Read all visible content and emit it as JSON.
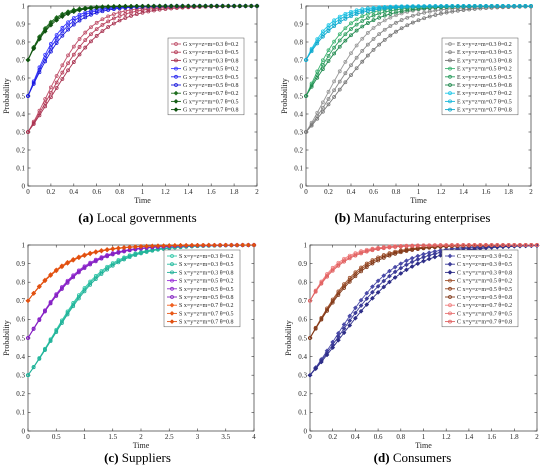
{
  "chart_data": [
    {
      "type": "line",
      "panel": "a",
      "caption_tag": "(a)",
      "caption_text": "Local governments",
      "xlabel": "Time",
      "ylabel": "Probability",
      "xlim": [
        0,
        2
      ],
      "ylim": [
        0,
        1
      ],
      "xticks": [
        "0",
        "0.2",
        "0.4",
        "0.6",
        "0.8",
        "1",
        "1.2",
        "1.4",
        "1.6",
        "1.8",
        "2"
      ],
      "yticks": [
        "0",
        "0.1",
        "0.2",
        "0.3",
        "0.4",
        "0.5",
        "0.6",
        "0.7",
        "0.8",
        "0.9",
        "1"
      ],
      "legend_position": "right-center",
      "series": [
        {
          "name": "G x=y=z=m=0.3 θ=0.2",
          "color": "#c0506a",
          "marker": "circle",
          "x0": 0.3,
          "rate": 5.2
        },
        {
          "name": "G x=y=z=m=0.3 θ=0.5",
          "color": "#b8405c",
          "marker": "circle",
          "x0": 0.3,
          "rate": 4.6
        },
        {
          "name": "G x=y=z=m=0.3 θ=0.8",
          "color": "#a83250",
          "marker": "circle",
          "x0": 0.3,
          "rate": 4.1
        },
        {
          "name": "G x=y=z=m=0.5 θ=0.2",
          "color": "#3a3aff",
          "marker": "circle",
          "x0": 0.5,
          "rate": 6.6
        },
        {
          "name": "G x=y=z=m=0.5 θ=0.5",
          "color": "#2a2aee",
          "marker": "circle",
          "x0": 0.5,
          "rate": 6.0
        },
        {
          "name": "G x=y=z=m=0.5 θ=0.8",
          "color": "#1a1add",
          "marker": "circle",
          "x0": 0.5,
          "rate": 5.4
        },
        {
          "name": "G x=y=z=m=0.7 θ=0.2",
          "color": "#1f6e1f",
          "marker": "diamond",
          "x0": 0.7,
          "rate": 7.4
        },
        {
          "name": "G x=y=z=m=0.7 θ=0.5",
          "color": "#176017",
          "marker": "diamond",
          "x0": 0.7,
          "rate": 6.9
        },
        {
          "name": "G x=y=z=m=0.7 θ=0.8",
          "color": "#0f520f",
          "marker": "diamond",
          "x0": 0.7,
          "rate": 6.4
        }
      ]
    },
    {
      "type": "line",
      "panel": "b",
      "caption_tag": "(b)",
      "caption_text": "Manufacturing enterprises",
      "xlabel": "Time",
      "ylabel": "Probability",
      "xlim": [
        0,
        2
      ],
      "ylim": [
        0,
        1
      ],
      "xticks": [
        "0",
        "0.2",
        "0.4",
        "0.6",
        "0.8",
        "1",
        "1.2",
        "1.4",
        "1.6",
        "1.8",
        "2"
      ],
      "yticks": [
        "0",
        "0.1",
        "0.2",
        "0.3",
        "0.4",
        "0.5",
        "0.6",
        "0.7",
        "0.8",
        "0.9",
        "1"
      ],
      "legend_position": "right-center",
      "series": [
        {
          "name": "E x=y=z=m=0.3 θ=0.2",
          "color": "#999999",
          "marker": "circle",
          "x0": 0.3,
          "rate": 4.7
        },
        {
          "name": "E x=y=z=m=0.3 θ=0.5",
          "color": "#888888",
          "marker": "circle",
          "x0": 0.3,
          "rate": 3.9
        },
        {
          "name": "E x=y=z=m=0.3 θ=0.8",
          "color": "#777777",
          "marker": "circle",
          "x0": 0.3,
          "rate": 3.3
        },
        {
          "name": "E x=y=z=m=0.5 θ=0.2",
          "color": "#3cb371",
          "marker": "circle",
          "x0": 0.5,
          "rate": 5.6
        },
        {
          "name": "E x=y=z=m=0.5 θ=0.5",
          "color": "#2e9e60",
          "marker": "circle",
          "x0": 0.5,
          "rate": 4.8
        },
        {
          "name": "E x=y=z=m=0.5 θ=0.8",
          "color": "#228b50",
          "marker": "circle",
          "x0": 0.5,
          "rate": 4.1
        },
        {
          "name": "E x=y=z=m=0.7 θ=0.2",
          "color": "#22c8e8",
          "marker": "circle",
          "x0": 0.7,
          "rate": 6.4
        },
        {
          "name": "E x=y=z=m=0.7 θ=0.5",
          "color": "#1ab8da",
          "marker": "circle",
          "x0": 0.7,
          "rate": 5.6
        },
        {
          "name": "E x=y=z=m=0.7 θ=0.8",
          "color": "#10a8cc",
          "marker": "circle",
          "x0": 0.7,
          "rate": 4.9
        }
      ]
    },
    {
      "type": "line",
      "panel": "c",
      "caption_tag": "(c)",
      "caption_text": "Suppliers",
      "xlabel": "Time",
      "ylabel": "Probability",
      "xlim": [
        0,
        4
      ],
      "ylim": [
        0,
        1
      ],
      "xticks": [
        "0",
        "0.5",
        "1",
        "1.5",
        "2",
        "2.5",
        "3",
        "3.5",
        "4"
      ],
      "yticks": [
        "0",
        "0.1",
        "0.2",
        "0.3",
        "0.4",
        "0.5",
        "0.6",
        "0.7",
        "0.8",
        "0.9",
        "1"
      ],
      "legend_position": "right-center",
      "series": [
        {
          "name": "S x=y=z=m=0.3 θ=0.2",
          "color": "#30c8a8",
          "marker": "circle",
          "x0": 0.3,
          "rate": 2.05
        },
        {
          "name": "S x=y=z=m=0.3 θ=0.5",
          "color": "#28bca0",
          "marker": "circle",
          "x0": 0.3,
          "rate": 2.0
        },
        {
          "name": "S x=y=z=m=0.3 θ=0.8",
          "color": "#20b098",
          "marker": "circle",
          "x0": 0.3,
          "rate": 1.95
        },
        {
          "name": "S x=y=z=m=0.5 θ=0.2",
          "color": "#9a30d8",
          "marker": "circle",
          "x0": 0.5,
          "rate": 2.05
        },
        {
          "name": "S x=y=z=m=0.5 θ=0.5",
          "color": "#8e28cc",
          "marker": "circle",
          "x0": 0.5,
          "rate": 2.0
        },
        {
          "name": "S x=y=z=m=0.5 θ=0.8",
          "color": "#8220c0",
          "marker": "circle",
          "x0": 0.5,
          "rate": 1.95
        },
        {
          "name": "S x=y=z=m=0.7 θ=0.2",
          "color": "#f06020",
          "marker": "diamond",
          "x0": 0.7,
          "rate": 2.05
        },
        {
          "name": "S x=y=z=m=0.7 θ=0.5",
          "color": "#e85818",
          "marker": "diamond",
          "x0": 0.7,
          "rate": 2.0
        },
        {
          "name": "S x=y=z=m=0.7 θ=0.8",
          "color": "#e05010",
          "marker": "diamond",
          "x0": 0.7,
          "rate": 1.95
        }
      ]
    },
    {
      "type": "line",
      "panel": "d",
      "caption_tag": "(d)",
      "caption_text": "Consumers",
      "xlabel": "Time",
      "ylabel": "Probability",
      "xlim": [
        0,
        2
      ],
      "ylim": [
        0,
        1
      ],
      "xticks": [
        "0",
        "0.2",
        "0.4",
        "0.6",
        "0.8",
        "1",
        "1.2",
        "1.4",
        "1.6",
        "1.8",
        "2"
      ],
      "yticks": [
        "0",
        "0.1",
        "0.2",
        "0.3",
        "0.4",
        "0.5",
        "0.6",
        "0.7",
        "0.8",
        "0.9",
        "1"
      ],
      "legend_position": "right-center",
      "series": [
        {
          "name": "C x=y=z=m=0.3 θ=0.2",
          "color": "#4a4aa8",
          "marker": "diamond",
          "x0": 0.3,
          "rate": 3.8
        },
        {
          "name": "C x=y=z=m=0.3 θ=0.5",
          "color": "#3c3c98",
          "marker": "diamond",
          "x0": 0.3,
          "rate": 3.5
        },
        {
          "name": "C x=y=z=m=0.3 θ=0.8",
          "color": "#2e2e88",
          "marker": "diamond",
          "x0": 0.3,
          "rate": 3.2
        },
        {
          "name": "C x=y=z=m=0.5 θ=0.2",
          "color": "#a0522d",
          "marker": "circle",
          "x0": 0.5,
          "rate": 4.4
        },
        {
          "name": "C x=y=z=m=0.5 θ=0.5",
          "color": "#904420",
          "marker": "circle",
          "x0": 0.5,
          "rate": 4.2
        },
        {
          "name": "C x=y=z=m=0.5 θ=0.8",
          "color": "#803818",
          "marker": "circle",
          "x0": 0.5,
          "rate": 4.0
        },
        {
          "name": "C x=y=z=m=0.7 θ=0.2",
          "color": "#f08080",
          "marker": "circle",
          "x0": 0.7,
          "rate": 5.6
        },
        {
          "name": "C x=y=z=m=0.7 θ=0.5",
          "color": "#e87070",
          "marker": "circle",
          "x0": 0.7,
          "rate": 5.2
        },
        {
          "name": "C x=y=z=m=0.7 θ=0.8",
          "color": "#e06060",
          "marker": "circle",
          "x0": 0.7,
          "rate": 4.9
        }
      ]
    }
  ]
}
